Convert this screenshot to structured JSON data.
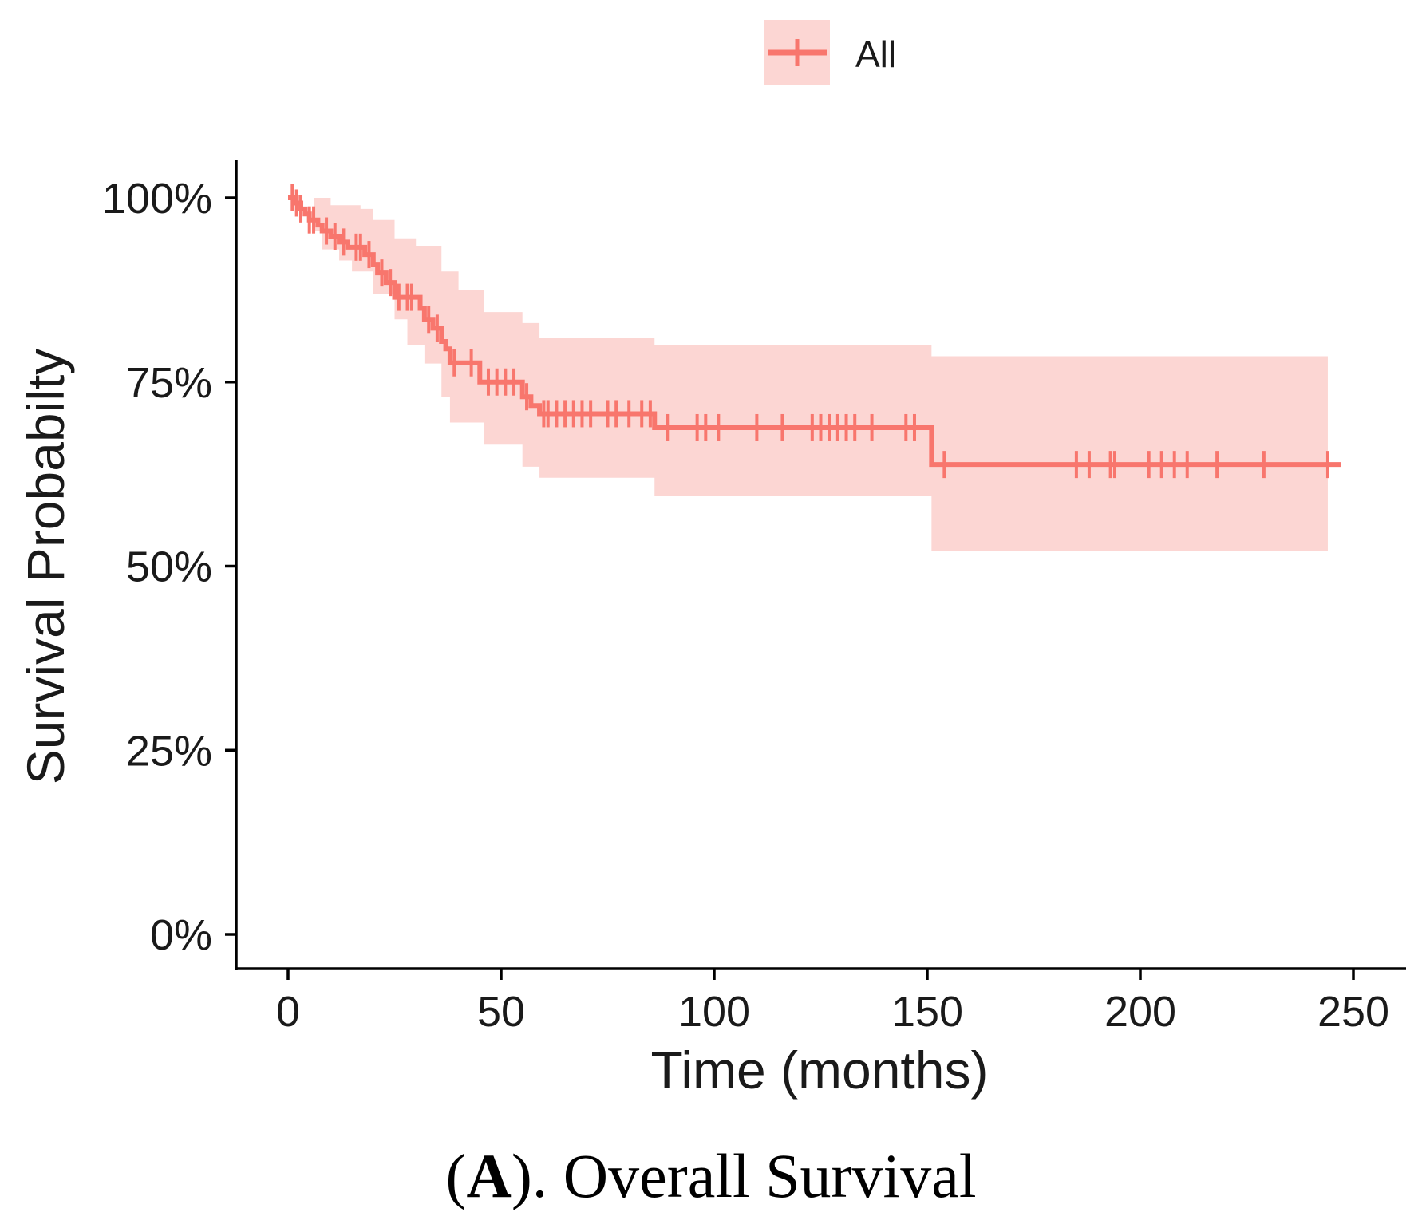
{
  "chart_data": {
    "type": "line",
    "subtype": "kaplan-meier",
    "caption": {
      "label": "A",
      "text": "). Overall Survival",
      "open_paren": "("
    },
    "xlabel": "Time (months)",
    "ylabel": "Survival Probabilty",
    "xlim": [
      -12,
      262
    ],
    "ylim": [
      -4,
      105
    ],
    "x_ticks": [
      0,
      50,
      100,
      150,
      200,
      250
    ],
    "x_tick_labels": [
      "0",
      "50",
      "100",
      "150",
      "200",
      "250"
    ],
    "y_ticks": [
      0,
      25,
      50,
      75,
      100
    ],
    "y_tick_labels": [
      "0%",
      "25%",
      "50%",
      "75%",
      "100%"
    ],
    "legend": {
      "position": "top-center",
      "entries": [
        "All"
      ]
    },
    "grid": false,
    "colors": {
      "line": "#f8766d",
      "band": "#fcd6d3",
      "axis": "#000000",
      "text": "#1a1a1a"
    },
    "series": [
      {
        "name": "All",
        "steps": [
          [
            0,
            100
          ],
          [
            2,
            99.3
          ],
          [
            3,
            98.5
          ],
          [
            4,
            97.8
          ],
          [
            5,
            97.0
          ],
          [
            7,
            96.3
          ],
          [
            8,
            95.5
          ],
          [
            10,
            94.8
          ],
          [
            12,
            94.0
          ],
          [
            14,
            93.3
          ],
          [
            18,
            92.3
          ],
          [
            20,
            91.0
          ],
          [
            21,
            89.8
          ],
          [
            23,
            88.5
          ],
          [
            25,
            86.5
          ],
          [
            31,
            85.0
          ],
          [
            32,
            83.5
          ],
          [
            34,
            82.3
          ],
          [
            36,
            80.5
          ],
          [
            37,
            79.5
          ],
          [
            38,
            77.6
          ],
          [
            45,
            75.0
          ],
          [
            55,
            73.0
          ],
          [
            57,
            71.8
          ],
          [
            59,
            70.7
          ],
          [
            86,
            68.8
          ],
          [
            151,
            63.8
          ],
          [
            247,
            63.8
          ]
        ],
        "ci_lower": [
          [
            0,
            100
          ],
          [
            6,
            95.5
          ],
          [
            8,
            93
          ],
          [
            12,
            91.5
          ],
          [
            15,
            90
          ],
          [
            20,
            87
          ],
          [
            25,
            83.5
          ],
          [
            28,
            80
          ],
          [
            32,
            77.5
          ],
          [
            36,
            73
          ],
          [
            38,
            69.5
          ],
          [
            46,
            66.5
          ],
          [
            55,
            63.5
          ],
          [
            59,
            62
          ],
          [
            86,
            59.5
          ],
          [
            151,
            52
          ],
          [
            244,
            52
          ]
        ],
        "ci_upper": [
          [
            0,
            100
          ],
          [
            8,
            100
          ],
          [
            10,
            99
          ],
          [
            17,
            98.5
          ],
          [
            20,
            97
          ],
          [
            25,
            94.5
          ],
          [
            30,
            93.5
          ],
          [
            36,
            90
          ],
          [
            40,
            87.5
          ],
          [
            46,
            84.5
          ],
          [
            55,
            83
          ],
          [
            59,
            81
          ],
          [
            86,
            80
          ],
          [
            151,
            78.5
          ],
          [
            244,
            78.5
          ]
        ],
        "censored_times": [
          1,
          2,
          3,
          5,
          6,
          9,
          11,
          13,
          16,
          17,
          19,
          22,
          24,
          26,
          28,
          29,
          33,
          35,
          39,
          43,
          47,
          49,
          51,
          53,
          56,
          60,
          61,
          63,
          65,
          67,
          69,
          71,
          75,
          77,
          80,
          83,
          85,
          89,
          96,
          98,
          101,
          110,
          116,
          123,
          125,
          127,
          129,
          131,
          133,
          137,
          145,
          147,
          154,
          185,
          188,
          193,
          194,
          202,
          205,
          208,
          211,
          218,
          229,
          244
        ]
      }
    ]
  }
}
